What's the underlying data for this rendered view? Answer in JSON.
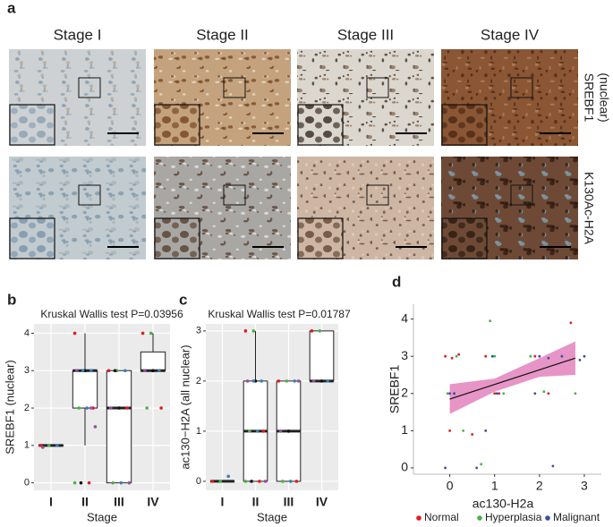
{
  "panel_labels": [
    "a",
    "b",
    "c",
    "d"
  ],
  "histology": {
    "columns": [
      "Stage I",
      "Stage II",
      "Stage III",
      "Stage IV"
    ],
    "rows": [
      [
        "SREBF1",
        "(nuclear)"
      ],
      [
        "K130Ac-H2A"
      ]
    ]
  },
  "chart_data": [
    {
      "type": "box",
      "title": "Kruskal Wallis test P=0.03956",
      "xlabel": "Stage",
      "ylabel": "SREBF1 (nuclear)",
      "categories": [
        "I",
        "II",
        "III",
        "IV"
      ],
      "boxes": [
        {
          "min": 1,
          "q1": 1,
          "median": 1,
          "q3": 1,
          "max": 1
        },
        {
          "min": 1,
          "q1": 2,
          "median": 3,
          "q3": 3,
          "max": 4
        },
        {
          "min": 0,
          "q1": 0,
          "median": 2,
          "q3": 3,
          "max": 3
        },
        {
          "min": 3,
          "q1": 3,
          "median": 3,
          "q3": 3.5,
          "max": 4
        }
      ],
      "points": [
        [
          1,
          1,
          1,
          0.95
        ],
        [
          4,
          3,
          3,
          3,
          3,
          2,
          2,
          2,
          1.5,
          0,
          0,
          0,
          3,
          2
        ],
        [
          3,
          3,
          3,
          2,
          2,
          2,
          0,
          0,
          0,
          3
        ],
        [
          4,
          4,
          3,
          3,
          3,
          2,
          2
        ]
      ],
      "point_colors": [
        "#e41a1c",
        "#4daf4a",
        "#377eb8",
        "#984ea3",
        "#111111"
      ],
      "ylim": [
        -0.2,
        4.25
      ],
      "yticks": [
        0,
        1,
        2,
        3,
        4
      ]
    },
    {
      "type": "box",
      "title": "Kruskal Wallis test P=0.01787",
      "xlabel": "Stage",
      "ylabel": "ac130−H2A (all nuclear)",
      "categories": [
        "I",
        "II",
        "III",
        "IV"
      ],
      "boxes": [
        {
          "min": 0,
          "q1": 0,
          "median": 0,
          "q3": 0,
          "max": 0
        },
        {
          "min": 0,
          "q1": 0,
          "median": 1,
          "q3": 2,
          "max": 3
        },
        {
          "min": 0,
          "q1": 0,
          "median": 1,
          "q3": 2,
          "max": 2
        },
        {
          "min": 2,
          "q1": 2,
          "median": 2,
          "q3": 3,
          "max": 3
        }
      ],
      "points": [
        [
          0,
          0,
          0.1
        ],
        [
          3,
          3,
          2,
          2,
          2,
          1,
          1,
          1,
          0,
          0,
          0,
          0,
          2
        ],
        [
          2,
          2,
          2,
          1,
          1,
          0,
          0,
          0,
          2
        ],
        [
          3,
          3,
          2,
          2,
          2
        ]
      ],
      "point_colors": [
        "#e41a1c",
        "#4daf4a",
        "#377eb8",
        "#984ea3",
        "#111111"
      ],
      "ylim": [
        -0.18,
        3.14
      ],
      "yticks": [
        0,
        1,
        2,
        3
      ]
    },
    {
      "type": "scatter",
      "xlabel": "ac130-H2a",
      "ylabel": "SREBF1",
      "xlim": [
        -0.81,
        3.38
      ],
      "ylim": [
        -0.17,
        4.4
      ],
      "xticks": [
        0,
        1,
        2,
        3
      ],
      "yticks": [
        0,
        1,
        2,
        3,
        4
      ],
      "series": [
        {
          "name": "Normal",
          "color": "#e41a1c",
          "x": [
            -0.1,
            0.05,
            0.1,
            0.0,
            0.2,
            0.8,
            1.1,
            1.9,
            2.2,
            0.5,
            2.7,
            1.0
          ],
          "values": [
            3.0,
            2.95,
            2.0,
            1.0,
            3.05,
            3.0,
            2.0,
            3.0,
            2.0,
            0.9,
            3.9,
            2.0
          ]
        },
        {
          "name": "Hyperplasia",
          "color": "#4daf4a",
          "x": [
            -0.05,
            0.15,
            0.9,
            1.2,
            1.8,
            2.1,
            0.3,
            2.8,
            0.7,
            1.0
          ],
          "values": [
            2.0,
            3.0,
            3.95,
            2.0,
            3.0,
            2.05,
            1.0,
            2.0,
            0.1,
            3.0
          ],
          "_": null
        },
        {
          "name": "Malignant",
          "color": "#3b4ea3",
          "x": [
            -0.1,
            0.1,
            0.95,
            1.05,
            2.0,
            2.2,
            2.5,
            3.0,
            0.0,
            0.6,
            2.3,
            1.9,
            2.9,
            0.8
          ],
          "values": [
            0.0,
            2.0,
            3.0,
            2.0,
            3.0,
            2.95,
            3.0,
            3.0,
            2.0,
            0.0,
            0.05,
            2.0,
            2.9,
            1.0
          ]
        }
      ],
      "fit": {
        "x": [
          0,
          2.8
        ],
        "values": [
          1.85,
          2.95
        ]
      },
      "ci": {
        "x": [
          0,
          1,
          2,
          2.8
        ],
        "lower": [
          1.45,
          2.05,
          2.45,
          2.5
        ],
        "upper": [
          2.25,
          2.4,
          2.95,
          3.4
        ]
      }
    }
  ]
}
